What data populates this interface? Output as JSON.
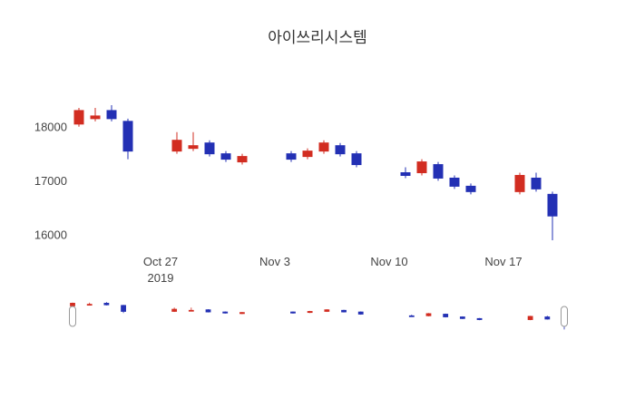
{
  "chart": {
    "title": "아이쓰리시스템",
    "colors": {
      "increasing": "#d22d21",
      "decreasing": "#2330b4",
      "text": "#444444",
      "background": "#ffffff",
      "handle_fill": "#ffffff",
      "handle_border": "#999999"
    },
    "y_ticks": [
      18000,
      17000,
      16000
    ],
    "x_ticks": [
      {
        "label": "Oct 27",
        "sublabel": "2019",
        "day_offset": 5
      },
      {
        "label": "Nov 3",
        "sublabel": "",
        "day_offset": 12
      },
      {
        "label": "Nov 10",
        "sublabel": "",
        "day_offset": 19
      },
      {
        "label": "Nov 17",
        "sublabel": "",
        "day_offset": 26
      }
    ]
  },
  "chart_data": {
    "type": "candlestick",
    "title": "아이쓰리시스템",
    "x": [
      "2019-10-22",
      "2019-10-23",
      "2019-10-24",
      "2019-10-25",
      "2019-10-28",
      "2019-10-29",
      "2019-10-30",
      "2019-10-31",
      "2019-11-01",
      "2019-11-04",
      "2019-11-05",
      "2019-11-06",
      "2019-11-07",
      "2019-11-08",
      "2019-11-11",
      "2019-11-12",
      "2019-11-13",
      "2019-11-14",
      "2019-11-15",
      "2019-11-18",
      "2019-11-19",
      "2019-11-20"
    ],
    "open": [
      18050,
      18150,
      18300,
      18100,
      17550,
      17600,
      17700,
      17500,
      17350,
      17500,
      17450,
      17550,
      17650,
      17500,
      17150,
      17150,
      17300,
      17050,
      16900,
      16800,
      17050,
      16750
    ],
    "high": [
      18350,
      18350,
      18400,
      18150,
      17900,
      17900,
      17750,
      17550,
      17500,
      17550,
      17600,
      17750,
      17700,
      17550,
      17250,
      17400,
      17350,
      17100,
      16950,
      17150,
      17150,
      16800
    ],
    "low": [
      18000,
      18100,
      18100,
      17400,
      17500,
      17550,
      17450,
      17350,
      17300,
      17350,
      17400,
      17500,
      17450,
      17250,
      17050,
      17100,
      17000,
      16850,
      16750,
      16750,
      16800,
      15900
    ],
    "close": [
      18300,
      18200,
      18150,
      17550,
      17750,
      17650,
      17500,
      17400,
      17450,
      17400,
      17550,
      17700,
      17500,
      17300,
      17100,
      17350,
      17050,
      16900,
      16800,
      17100,
      16850,
      16350
    ],
    "ylim": [
      15850,
      18500
    ],
    "increasing_color": "#d22d21",
    "decreasing_color": "#2330b4",
    "grid": false,
    "rangeslider": true
  }
}
